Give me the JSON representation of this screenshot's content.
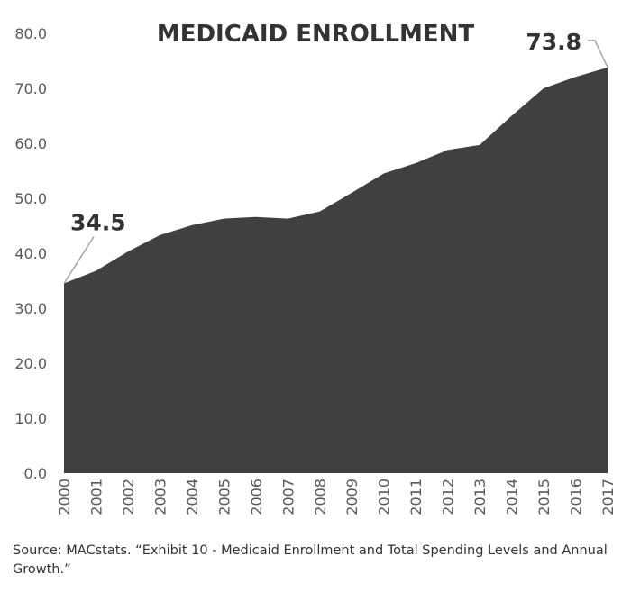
{
  "chart_data": {
    "type": "area",
    "title": "MEDICAID ENROLLMENT",
    "x": [
      "2000",
      "2001",
      "2002",
      "2003",
      "2004",
      "2005",
      "2006",
      "2007",
      "2008",
      "2009",
      "2010",
      "2011",
      "2012",
      "2013",
      "2014",
      "2015",
      "2016",
      "2017"
    ],
    "values": [
      34.5,
      36.8,
      40.3,
      43.3,
      45.1,
      46.3,
      46.6,
      46.3,
      47.6,
      51.0,
      54.5,
      56.4,
      58.8,
      59.7,
      65.0,
      70.0,
      72.1,
      73.8
    ],
    "y_ticks": [
      "0.0",
      "10.0",
      "20.0",
      "30.0",
      "40.0",
      "50.0",
      "60.0",
      "70.0",
      "80.0"
    ],
    "ylim": [
      0,
      80
    ],
    "grid": false,
    "legend": "none",
    "area_color": "#404040",
    "annotations": [
      {
        "x": "2000",
        "label": "34.5"
      },
      {
        "x": "2017",
        "label": "73.8"
      }
    ],
    "source": "Source: MACstats. “Exhibit 10 - Medicaid Enrollment and Total Spending Levels and Annual Growth.”"
  }
}
